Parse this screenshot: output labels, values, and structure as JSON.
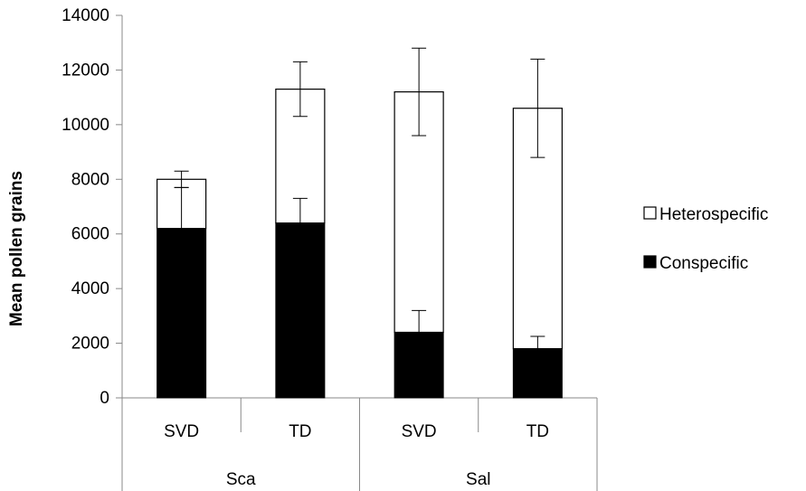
{
  "chart_data": {
    "type": "bar",
    "stacked": true,
    "title": "",
    "xlabel": "",
    "ylabel": "Mean pollen grains",
    "ylim": [
      0,
      14000
    ],
    "yticks": [
      0,
      2000,
      4000,
      6000,
      8000,
      10000,
      12000,
      14000
    ],
    "grid": false,
    "legend_position": "right",
    "groups": [
      {
        "label": "Sca",
        "categories": [
          "SVD",
          "TD"
        ]
      },
      {
        "label": "Sal",
        "categories": [
          "SVD",
          "TD"
        ]
      }
    ],
    "categories": [
      "SVD",
      "TD",
      "SVD",
      "TD"
    ],
    "series": [
      {
        "name": "Conspecific",
        "color": "#000000",
        "values": [
          6200,
          6400,
          2400,
          1800
        ],
        "error_upper": [
          7700,
          7300,
          3200,
          2250
        ]
      },
      {
        "name": "Heterospecific",
        "color": "#ffffff",
        "values": [
          1800,
          4900,
          8800,
          8800
        ],
        "totals": [
          8000,
          11300,
          11200,
          10600
        ],
        "error_lower": [
          7700,
          10300,
          9600,
          8800
        ],
        "error_upper": [
          8300,
          12300,
          12800,
          12400
        ]
      }
    ],
    "legend": [
      "Heterospecific",
      "Conspecific"
    ]
  }
}
